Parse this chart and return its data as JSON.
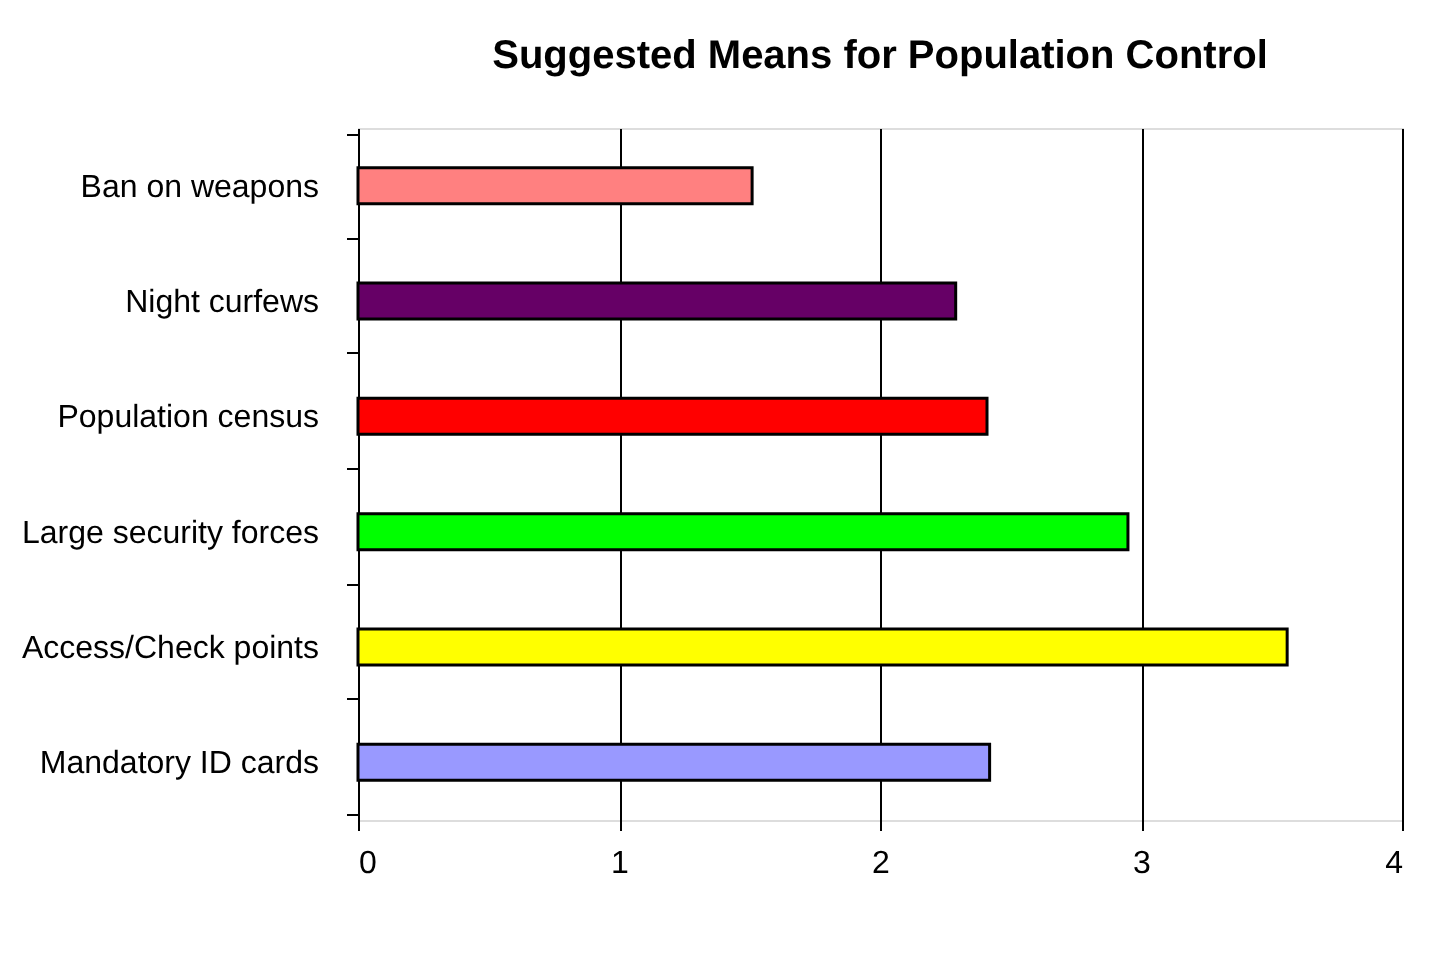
{
  "chart_data": {
    "type": "bar",
    "orientation": "horizontal",
    "title": "Suggested Means for Population Control",
    "categories": [
      "Ban on weapons",
      "Night curfews",
      "Population census",
      "Large security forces",
      "Access/Check points",
      "Mandatory ID cards"
    ],
    "values": [
      1.51,
      2.29,
      2.41,
      2.95,
      3.56,
      2.42
    ],
    "colors": [
      "#ff8080",
      "#660066",
      "#ff0000",
      "#00ff00",
      "#ffff00",
      "#9999ff"
    ],
    "xlim": [
      0,
      4
    ],
    "xticks": [
      0,
      1,
      2,
      3,
      4
    ],
    "grid": "x"
  }
}
